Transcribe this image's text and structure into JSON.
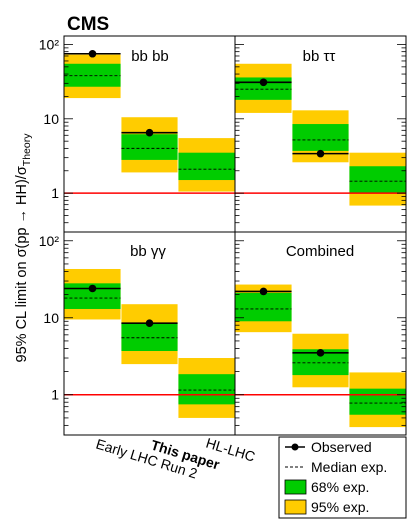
{
  "experiment": "CMS",
  "ylabel_main": "95% CL limit on σ(pp → HH)/σ",
  "ylabel_sub": "Theory",
  "x_categories": [
    "Early LHC Run 2",
    "This paper",
    "HL-LHC"
  ],
  "bold_category_index": 1,
  "y_ticks": [
    "1",
    "10",
    "10²"
  ],
  "legend": {
    "observed": "Observed",
    "median": "Median exp.",
    "band68": "68% exp.",
    "band95": "95% exp."
  },
  "colors": {
    "band68": "#00cc00",
    "band95": "#ffcc00",
    "reference_line": "#ff0000"
  },
  "chart_data": {
    "type": "limit-comparison",
    "y_scale": "log",
    "ylim": [
      0.3,
      130
    ],
    "reference_value": 1,
    "panels": [
      {
        "label": "bb bb",
        "groups": [
          {
            "category": "Early LHC Run 2",
            "observed": 75,
            "median": 38,
            "band68": [
              27,
              55
            ],
            "band95": [
              19,
              73
            ]
          },
          {
            "category": "This paper",
            "observed": 6.5,
            "median": 4.0,
            "band68": [
              2.8,
              6.2
            ],
            "band95": [
              1.9,
              10.5
            ]
          },
          {
            "category": "HL-LHC",
            "observed": null,
            "median": 2.1,
            "band68": [
              1.5,
              3.5
            ],
            "band95": [
              1.05,
              5.5
            ]
          }
        ]
      },
      {
        "label": "bb ττ",
        "groups": [
          {
            "category": "Early LHC Run 2",
            "observed": 31,
            "median": 25,
            "band68": [
              18,
              36
            ],
            "band95": [
              12,
              55
            ]
          },
          {
            "category": "This paper",
            "observed": 3.4,
            "median": 5.2,
            "band68": [
              3.7,
              8.5
            ],
            "band95": [
              2.6,
              13
            ]
          },
          {
            "category": "HL-LHC",
            "observed": null,
            "median": 1.45,
            "band68": [
              1.0,
              2.3
            ],
            "band95": [
              0.68,
              3.5
            ]
          }
        ]
      },
      {
        "label": "bb γγ",
        "groups": [
          {
            "category": "Early LHC Run 2",
            "observed": 24,
            "median": 18,
            "band68": [
              13,
              28
            ],
            "band95": [
              9.5,
              43
            ]
          },
          {
            "category": "This paper",
            "observed": 8.5,
            "median": 5.5,
            "band68": [
              3.7,
              8.6
            ],
            "band95": [
              2.5,
              15
            ]
          },
          {
            "category": "HL-LHC",
            "observed": null,
            "median": 1.15,
            "band68": [
              0.75,
              1.85
            ],
            "band95": [
              0.5,
              3.0
            ]
          }
        ]
      },
      {
        "label": "Combined",
        "groups": [
          {
            "category": "Early LHC Run 2",
            "observed": 22,
            "median": 13,
            "band68": [
              9,
              21
            ],
            "band95": [
              6.5,
              27
            ]
          },
          {
            "category": "This paper",
            "observed": 3.5,
            "median": 2.6,
            "band68": [
              1.8,
              3.9
            ],
            "band95": [
              1.25,
              6.2
            ]
          },
          {
            "category": "HL-LHC",
            "observed": null,
            "median": 0.78,
            "band68": [
              0.55,
              1.2
            ],
            "band95": [
              0.38,
              1.95
            ]
          }
        ]
      }
    ]
  }
}
